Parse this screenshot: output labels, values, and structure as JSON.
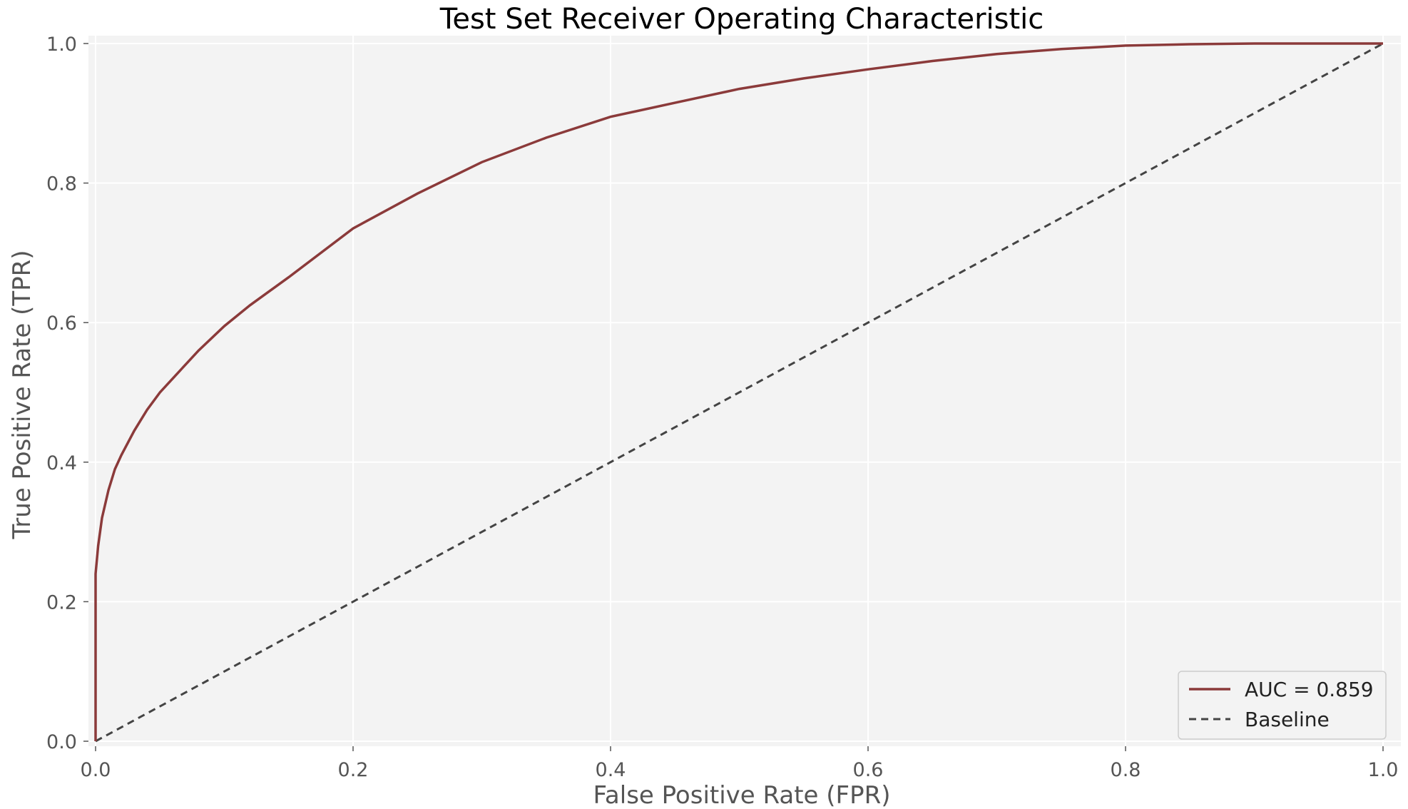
{
  "chart_data": {
    "type": "line",
    "title": "Test Set Receiver Operating Characteristic",
    "xlabel": "False Positive Rate (FPR)",
    "ylabel": "True Positive Rate (TPR)",
    "xlim": [
      0,
      1
    ],
    "ylim": [
      0,
      1
    ],
    "xticks": [
      "0.0",
      "0.2",
      "0.4",
      "0.6",
      "0.8",
      "1.0"
    ],
    "yticks": [
      "0.0",
      "0.2",
      "0.4",
      "0.6",
      "0.8",
      "1.0"
    ],
    "grid": true,
    "legend_position": "lower-right",
    "series": [
      {
        "name": "AUC = 0.859",
        "color": "#8b3a3a",
        "style": "solid",
        "x": [
          0.0,
          0.0,
          0.002,
          0.005,
          0.01,
          0.015,
          0.02,
          0.03,
          0.04,
          0.05,
          0.06,
          0.08,
          0.1,
          0.12,
          0.15,
          0.2,
          0.25,
          0.3,
          0.35,
          0.4,
          0.45,
          0.5,
          0.55,
          0.6,
          0.65,
          0.7,
          0.75,
          0.8,
          0.85,
          0.9,
          0.95,
          1.0
        ],
        "y": [
          0.0,
          0.24,
          0.28,
          0.32,
          0.36,
          0.39,
          0.41,
          0.445,
          0.475,
          0.5,
          0.52,
          0.56,
          0.595,
          0.625,
          0.665,
          0.735,
          0.785,
          0.83,
          0.865,
          0.895,
          0.915,
          0.935,
          0.95,
          0.963,
          0.975,
          0.985,
          0.992,
          0.997,
          0.999,
          1.0,
          1.0,
          1.0
        ]
      },
      {
        "name": "Baseline",
        "color": "#444444",
        "style": "dashed",
        "x": [
          0,
          1
        ],
        "y": [
          0,
          1
        ]
      }
    ]
  }
}
